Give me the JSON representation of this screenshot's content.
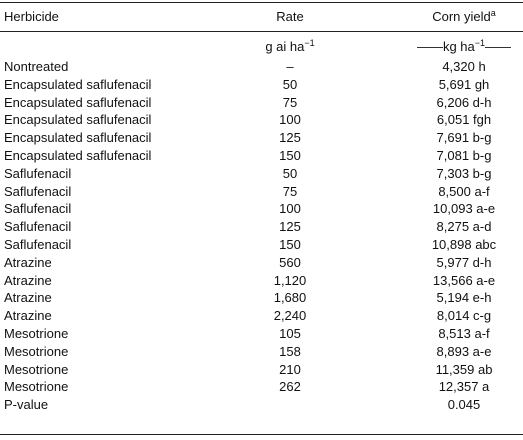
{
  "table": {
    "header": [
      "Herbicide",
      "Rate",
      {
        "text": "Corn yield",
        "sup": "a"
      }
    ],
    "units": [
      {
        "text": "g ai ha",
        "sup": "−1"
      },
      {
        "text": "——kg ha",
        "sup": "−1",
        "after": "——"
      }
    ],
    "rows": [
      [
        "Nontreated",
        "–",
        "4,320 h"
      ],
      [
        "Encapsulated saflufenacil",
        "50",
        "5,691 gh"
      ],
      [
        "Encapsulated saflufenacil",
        "75",
        "6,206 d-h"
      ],
      [
        "Encapsulated saflufenacil",
        "100",
        "6,051 fgh"
      ],
      [
        "Encapsulated saflufenacil",
        "125",
        "7,691 b-g"
      ],
      [
        "Encapsulated saflufenacil",
        "150",
        "7,081 b-g"
      ],
      [
        "Saflufenacil",
        "50",
        "7,303 b-g"
      ],
      [
        "Saflufenacil",
        "75",
        "8,500 a-f"
      ],
      [
        "Saflufenacil",
        "100",
        "10,093 a-e"
      ],
      [
        "Saflufenacil",
        "125",
        "8,275 a-d"
      ],
      [
        "Saflufenacil",
        "150",
        "10,898 abc"
      ],
      [
        "Atrazine",
        "560",
        "5,977 d-h"
      ],
      [
        "Atrazine",
        "1,120",
        "13,566 a-e"
      ],
      [
        "Atrazine",
        "1,680",
        "5,194 e-h"
      ],
      [
        "Atrazine",
        "2,240",
        "8,014 c-g"
      ],
      [
        "Mesotrione",
        "105",
        "8,513 a-f"
      ],
      [
        "Mesotrione",
        "158",
        "8,893 a-e"
      ],
      [
        "Mesotrione",
        "210",
        "11,359 ab"
      ],
      [
        "Mesotrione",
        "262",
        "12,357 a"
      ],
      [
        "P-value",
        "",
        "0.045"
      ]
    ]
  }
}
